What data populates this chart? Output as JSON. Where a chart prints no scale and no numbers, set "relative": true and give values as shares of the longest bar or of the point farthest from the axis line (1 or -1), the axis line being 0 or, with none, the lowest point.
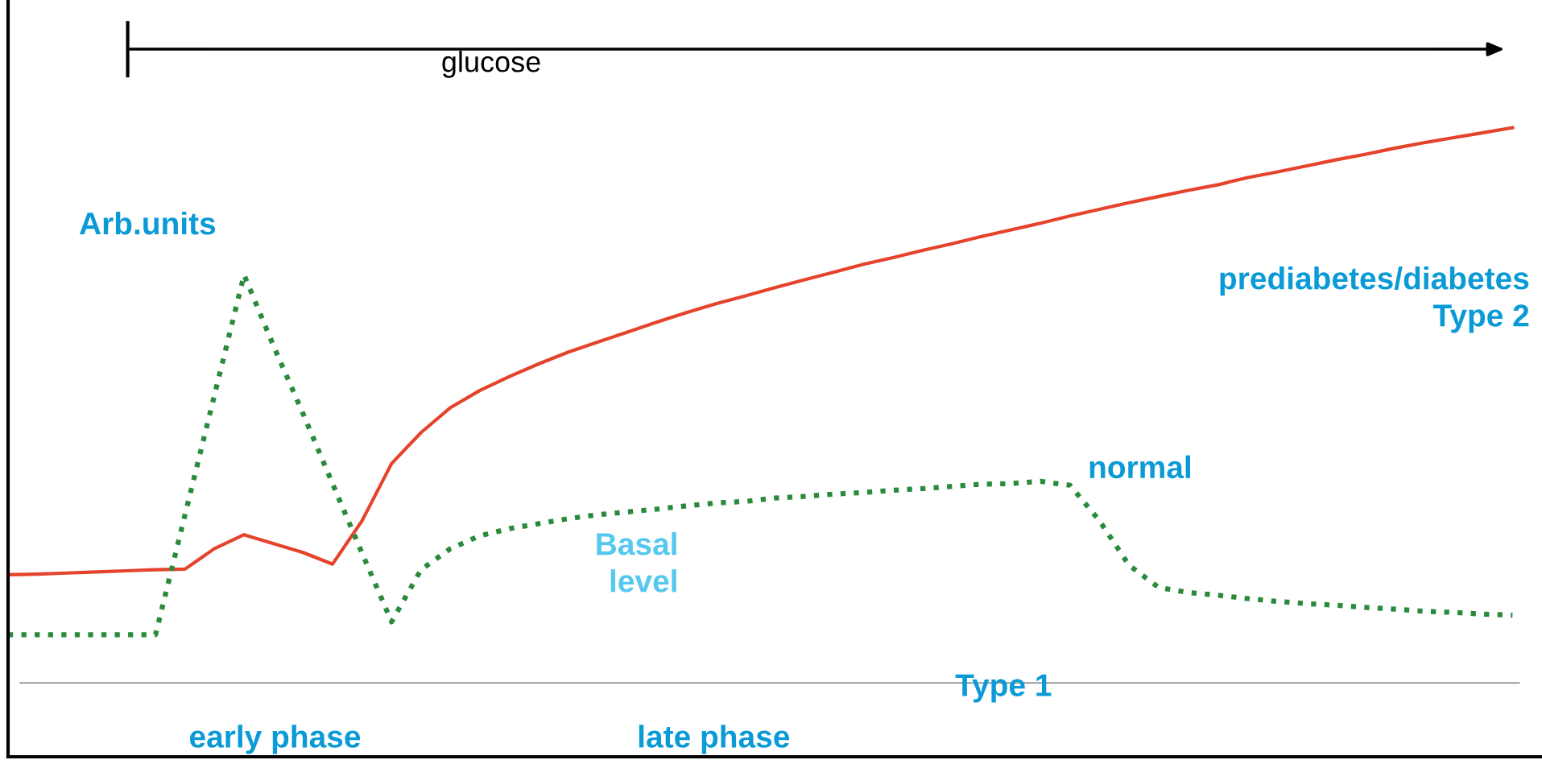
{
  "chart_data": {
    "type": "line",
    "relative": true,
    "categories": [
      null,
      null,
      null,
      null,
      null,
      null,
      null,
      null,
      null,
      null,
      null,
      null,
      null,
      null,
      null,
      null,
      null,
      null,
      null,
      null,
      null,
      null,
      null,
      null,
      null,
      null,
      null,
      null,
      null,
      null,
      null,
      null,
      null,
      null,
      null,
      null,
      null,
      null,
      null,
      null,
      null,
      null,
      null,
      null,
      null,
      null,
      null,
      null,
      null,
      null,
      null,
      null
    ],
    "series": [
      {
        "color": "#e5432b",
        "line_style": "solid",
        "values": [
          0.195,
          0.196,
          0.198,
          0.2,
          0.202,
          0.204,
          0.205,
          0.242,
          0.267,
          0.251,
          0.235,
          0.214,
          0.292,
          0.395,
          0.451,
          0.496,
          0.527,
          0.552,
          0.575,
          0.596,
          0.614,
          0.632,
          0.65,
          0.667,
          0.683,
          0.697,
          0.712,
          0.726,
          0.74,
          0.754,
          0.766,
          0.779,
          0.791,
          0.804,
          0.816,
          0.828,
          0.841,
          0.853,
          0.865,
          0.876,
          0.887,
          0.897,
          0.91,
          0.92,
          0.931,
          0.942,
          0.952,
          0.963,
          0.973,
          0.982,
          0.991,
          1.0
        ]
      },
      {
        "color": "#2a8a3c",
        "line_style": "dotted",
        "values": [
          0.087,
          0.087,
          0.087,
          0.087,
          0.087,
          0.087,
          0.303,
          0.519,
          0.735,
          0.607,
          0.485,
          0.359,
          0.234,
          0.11,
          0.204,
          0.242,
          0.265,
          0.278,
          0.287,
          0.296,
          0.303,
          0.308,
          0.313,
          0.319,
          0.324,
          0.327,
          0.333,
          0.336,
          0.34,
          0.343,
          0.347,
          0.35,
          0.354,
          0.358,
          0.359,
          0.363,
          0.356,
          0.292,
          0.212,
          0.172,
          0.163,
          0.158,
          0.152,
          0.147,
          0.143,
          0.14,
          0.136,
          0.133,
          0.129,
          0.127,
          0.124,
          0.122
        ]
      }
    ],
    "annotations": [
      "glucose",
      "Arb.units",
      "prediabetes/diabetes\nType 2",
      "normal",
      "Basal\nlevel",
      "Type 1",
      "early phase",
      "late phase"
    ]
  }
}
